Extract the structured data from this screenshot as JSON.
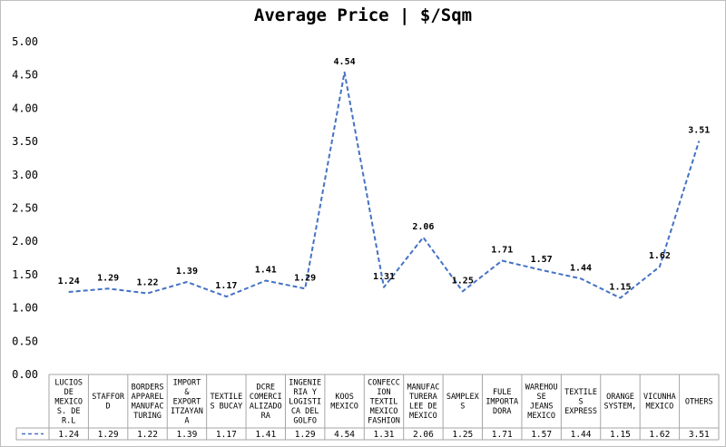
{
  "chart_data": {
    "type": "line",
    "title": "Average Price | $/Sqm",
    "ylim": [
      0,
      5
    ],
    "yticks": [
      "0.00",
      "0.50",
      "1.00",
      "1.50",
      "2.00",
      "2.50",
      "3.00",
      "3.50",
      "4.00",
      "4.50",
      "5.00"
    ],
    "categories": [
      "LUCIOS DE MEXICO S. DE R.L",
      "STAFFORD",
      "BORDERS APPAREL MANUFACTURING",
      "IMPORT & EXPORT ITZAYANA",
      "TEXTILES BUCAY",
      "DCRE COMERCIALIZADORA",
      "INGENIERIA Y LOGISTICA DEL GOLFO",
      "KOOS MEXICO",
      "CONFECCION TEXTIL MEXICO FASHION",
      "MANUFACTURERA LEE DE MEXICO",
      "SAMPLEXS",
      "FULE IMPORTADORA",
      "WAREHOUSE JEANS MEXICO",
      "TEXTILES EXPRESS",
      "ORANGE SYSTEM,",
      "VICUNHA MEXICO",
      "OTHERS"
    ],
    "category_lines": [
      [
        "LUCIOS",
        "DE",
        "MEXICO",
        "S. DE",
        "R.L"
      ],
      [
        "STAFFOR",
        "D"
      ],
      [
        "BORDERS",
        "APPAREL",
        "MANUFAC",
        "TURING"
      ],
      [
        "IMPORT",
        "&",
        "EXPORT",
        "ITZAYAN",
        "A"
      ],
      [
        "TEXTILE",
        "S BUCAY"
      ],
      [
        "DCRE",
        "COMERCI",
        "ALIZADO",
        "RA"
      ],
      [
        "INGENIE",
        "RIA Y",
        "LOGISTI",
        "CA DEL",
        "GOLFO"
      ],
      [
        "KOOS",
        "MEXICO"
      ],
      [
        "CONFECC",
        "ION",
        "TEXTIL",
        "MEXICO",
        "FASHION"
      ],
      [
        "MANUFAC",
        "TURERA",
        "LEE DE",
        "MEXICO"
      ],
      [
        "SAMPLEX",
        "S"
      ],
      [
        "FULE",
        "IMPORTA",
        "DORA"
      ],
      [
        "WAREHOU",
        "SE",
        "JEANS",
        "MEXICO"
      ],
      [
        "TEXTILE",
        "S",
        "EXPRESS"
      ],
      [
        "ORANGE",
        "SYSTEM,"
      ],
      [
        "VICUNHA",
        "MEXICO"
      ],
      [
        "OTHERS"
      ]
    ],
    "values": [
      1.24,
      1.29,
      1.22,
      1.39,
      1.17,
      1.41,
      1.29,
      4.54,
      1.31,
      2.06,
      1.25,
      1.71,
      1.57,
      1.44,
      1.15,
      1.62,
      3.51
    ],
    "value_labels": [
      "1.24",
      "1.29",
      "1.22",
      "1.39",
      "1.17",
      "1.41",
      "1.29",
      "4.54",
      "1.31",
      "2.06",
      "1.25",
      "1.71",
      "1.57",
      "1.44",
      "1.15",
      "1.62",
      "3.51"
    ],
    "line_color": "#4472c4",
    "grid": false,
    "legend": "data-table"
  }
}
